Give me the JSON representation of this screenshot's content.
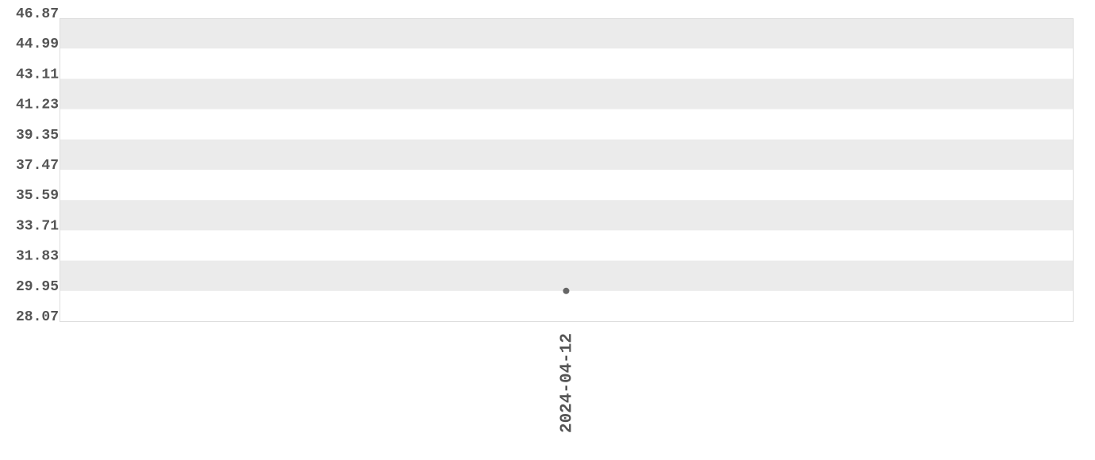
{
  "chart_data": {
    "type": "scatter",
    "title": "",
    "xlabel": "",
    "ylabel": "",
    "categories": [
      "2024-04-12"
    ],
    "series": [
      {
        "values": [
          29.95
        ]
      }
    ],
    "ylim": [
      28.07,
      46.87
    ],
    "y_ticks": [
      "46.87",
      "44.99",
      "43.11",
      "41.23",
      "39.35",
      "37.47",
      "35.59",
      "33.71",
      "31.83",
      "29.95",
      "28.07"
    ],
    "grid": "alternating horizontal bands",
    "legend": "none",
    "colors": {
      "band": "#ebebeb",
      "point": "#666666",
      "text": "#555555",
      "border": "#dddddd"
    }
  }
}
